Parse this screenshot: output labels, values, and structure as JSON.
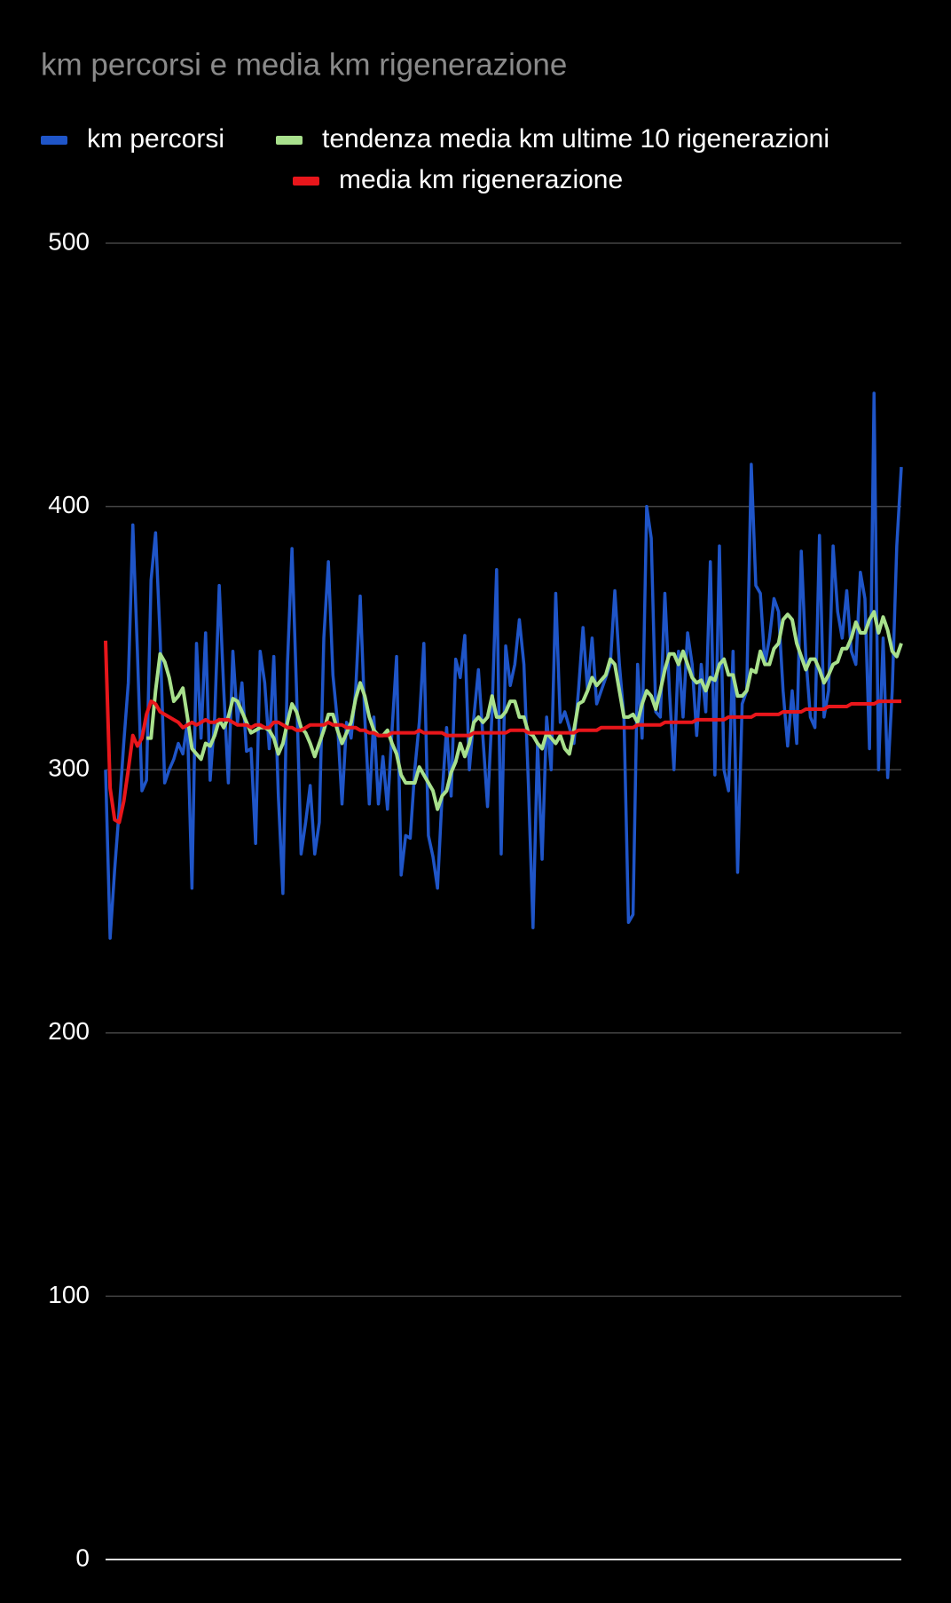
{
  "chart_data": {
    "type": "line",
    "title": "km percorsi e media km rigenerazione",
    "ylim": [
      0,
      500
    ],
    "yticks": [
      0,
      100,
      200,
      300,
      400,
      500
    ],
    "grid": true,
    "legend": "top",
    "series": [
      {
        "name": "km percorsi",
        "color": "#1f55c8",
        "values": [
          300,
          236,
          262,
          285,
          310,
          333,
          393,
          345,
          292,
          296,
          372,
          390,
          350,
          295,
          300,
          304,
          310,
          306,
          318,
          255,
          348,
          312,
          352,
          296,
          320,
          370,
          330,
          295,
          345,
          318,
          333,
          307,
          308,
          272,
          345,
          333,
          308,
          343,
          290,
          253,
          340,
          384,
          330,
          268,
          280,
          294,
          268,
          280,
          350,
          379,
          336,
          318,
          287,
          318,
          312,
          330,
          366,
          320,
          287,
          320,
          287,
          305,
          285,
          315,
          343,
          260,
          275,
          274,
          300,
          318,
          348,
          275,
          267,
          255,
          290,
          316,
          290,
          342,
          335,
          351,
          300,
          320,
          338,
          312,
          286,
          322,
          376,
          268,
          347,
          332,
          340,
          357,
          340,
          294,
          240,
          310,
          266,
          320,
          300,
          367,
          318,
          322,
          316,
          310,
          330,
          354,
          330,
          350,
          325,
          330,
          335,
          340,
          368,
          340,
          320,
          242,
          245,
          340,
          312,
          400,
          388,
          322,
          320,
          367,
          330,
          300,
          345,
          320,
          352,
          340,
          313,
          340,
          322,
          379,
          298,
          385,
          300,
          292,
          345,
          261,
          325,
          330,
          416,
          370,
          367,
          340,
          350,
          365,
          360,
          330,
          309,
          330,
          310,
          383,
          343,
          320,
          316,
          389,
          320,
          330,
          385,
          360,
          350,
          368,
          345,
          340,
          375,
          365,
          308,
          443,
          300,
          350,
          297,
          330,
          385,
          415
        ]
      },
      {
        "name": "tendenza media km ultime 10 rigenerazioni",
        "color": "#a8e08c",
        "values": [
          null,
          null,
          null,
          null,
          null,
          null,
          null,
          null,
          null,
          312,
          312,
          330,
          344,
          341,
          335,
          326,
          328,
          331,
          320,
          308,
          306,
          304,
          310,
          309,
          313,
          319,
          316,
          320,
          327,
          326,
          322,
          318,
          314,
          315,
          316,
          316,
          315,
          312,
          306,
          310,
          318,
          325,
          322,
          316,
          314,
          310,
          305,
          310,
          315,
          321,
          321,
          315,
          310,
          314,
          318,
          327,
          333,
          328,
          320,
          315,
          313,
          313,
          315,
          310,
          306,
          298,
          295,
          295,
          295,
          301,
          298,
          295,
          292,
          285,
          290,
          292,
          299,
          303,
          310,
          305,
          310,
          318,
          320,
          318,
          320,
          328,
          320,
          320,
          322,
          326,
          326,
          320,
          320,
          314,
          313,
          310,
          308,
          314,
          312,
          310,
          313,
          308,
          306,
          315,
          325,
          326,
          330,
          335,
          332,
          334,
          336,
          342,
          340,
          330,
          320,
          320,
          321,
          318,
          325,
          330,
          328,
          323,
          330,
          338,
          344,
          344,
          340,
          345,
          340,
          335,
          333,
          334,
          330,
          335,
          334,
          340,
          342,
          336,
          336,
          328,
          328,
          330,
          338,
          337,
          345,
          340,
          340,
          346,
          348,
          357,
          359,
          357,
          348,
          343,
          338,
          342,
          342,
          338,
          333,
          336,
          340,
          341,
          346,
          346,
          350,
          356,
          352,
          352,
          357,
          360,
          352,
          358,
          353,
          345,
          343,
          348
        ]
      },
      {
        "name": "media km rigenerazione",
        "color": "#e8161b",
        "values": [
          349,
          293,
          281,
          280,
          288,
          300,
          313,
          309,
          312,
          321,
          326,
          325,
          322,
          321,
          320,
          319,
          318,
          316,
          317,
          318,
          317,
          318,
          319,
          318,
          318,
          319,
          319,
          319,
          318,
          317,
          317,
          317,
          316,
          317,
          317,
          316,
          316,
          318,
          318,
          317,
          316,
          316,
          315,
          315,
          316,
          317,
          317,
          317,
          317,
          318,
          317,
          317,
          317,
          316,
          316,
          316,
          315,
          315,
          314,
          314,
          313,
          313,
          313,
          314,
          314,
          314,
          314,
          314,
          314,
          315,
          314,
          314,
          314,
          314,
          314,
          313,
          313,
          313,
          313,
          313,
          313,
          314,
          314,
          314,
          314,
          314,
          314,
          314,
          314,
          315,
          315,
          315,
          315,
          314,
          314,
          314,
          314,
          314,
          314,
          314,
          314,
          314,
          314,
          314,
          315,
          315,
          315,
          315,
          315,
          316,
          316,
          316,
          316,
          316,
          316,
          316,
          316,
          317,
          317,
          317,
          317,
          317,
          317,
          318,
          318,
          318,
          318,
          318,
          318,
          318,
          319,
          319,
          319,
          319,
          319,
          319,
          319,
          320,
          320,
          320,
          320,
          320,
          320,
          321,
          321,
          321,
          321,
          321,
          321,
          322,
          322,
          322,
          322,
          322,
          323,
          323,
          323,
          323,
          323,
          324,
          324,
          324,
          324,
          324,
          325,
          325,
          325,
          325,
          325,
          325,
          326,
          326,
          326,
          326,
          326,
          326
        ]
      }
    ]
  }
}
